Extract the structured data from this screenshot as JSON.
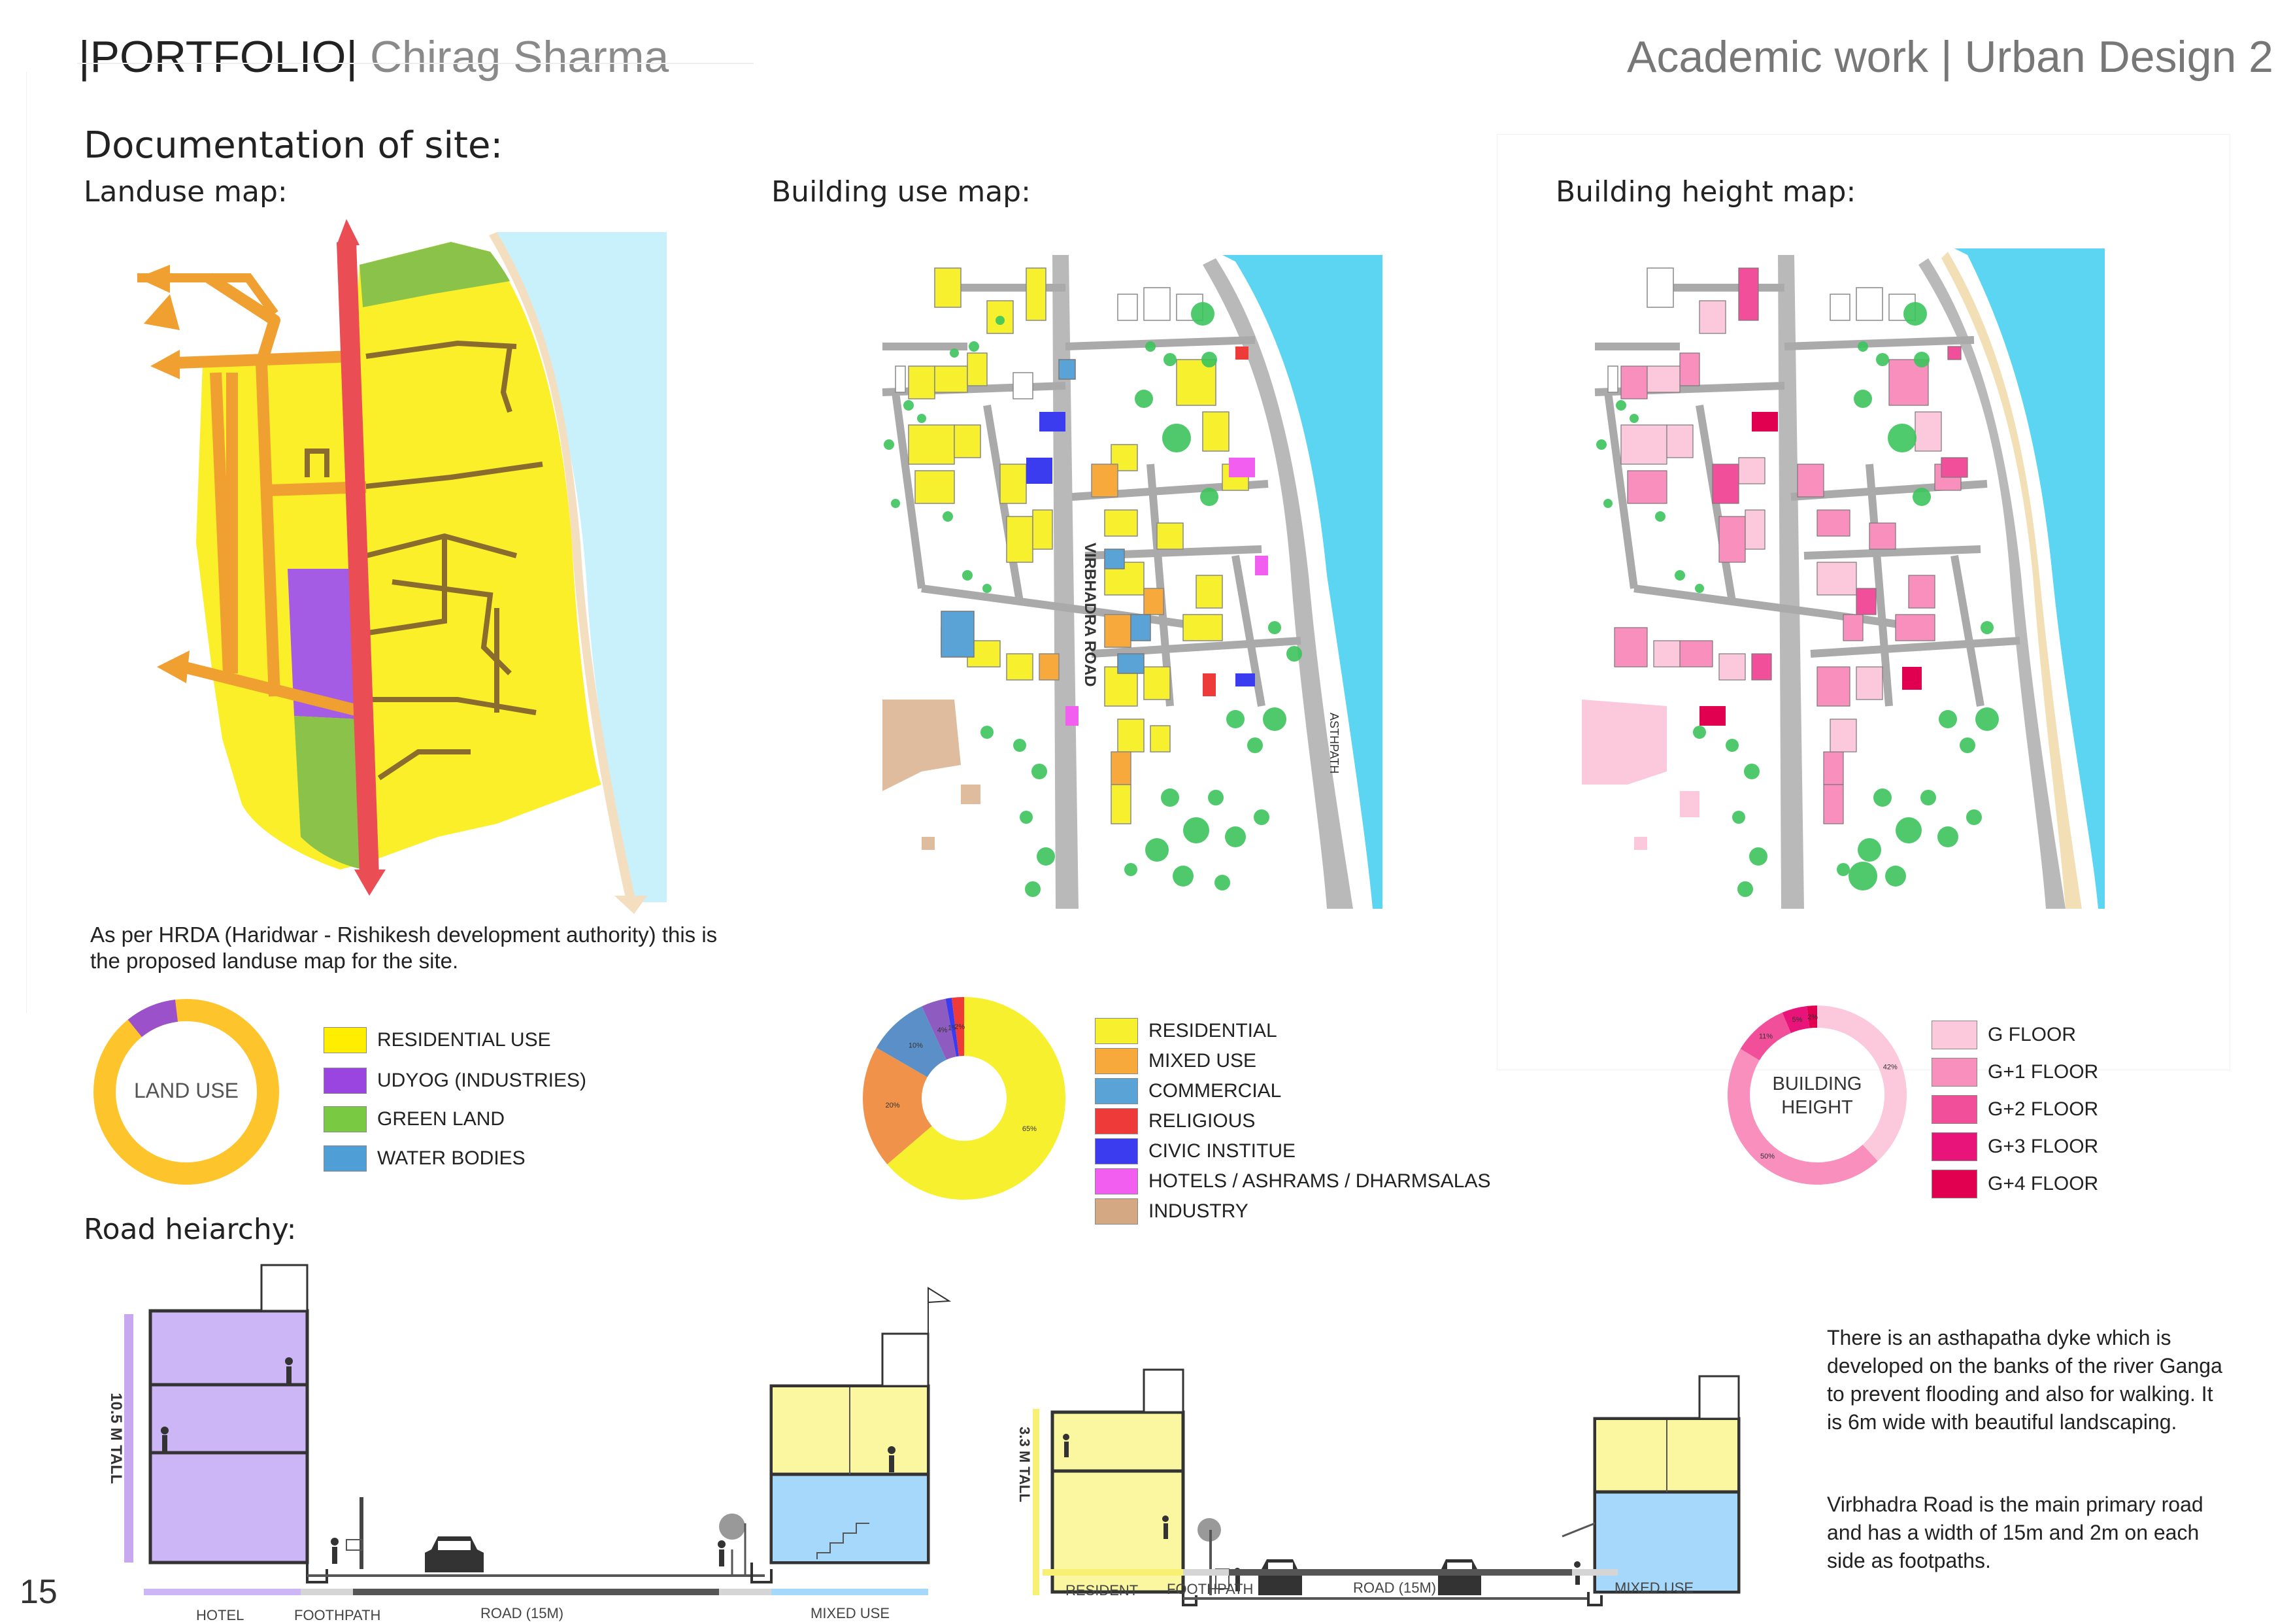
{
  "header": {
    "portfolio": "PORTFOLIO",
    "name": "Chirag Sharma",
    "right": "Academic work | Urban Design 2"
  },
  "page_title": "Documentation of site:",
  "page_number": "15",
  "landuse": {
    "title": "Landuse map:",
    "note": "As per HRDA (Haridwar - Rishikesh development authority) this is the proposed landuse map for the site.",
    "donut_label": "LAND USE",
    "legend": [
      {
        "label": "RESIDENTIAL USE",
        "color": "#ffee00"
      },
      {
        "label": "UDYOG (INDUSTRIES)",
        "color": "#9b45e0"
      },
      {
        "label": "GREEN LAND",
        "color": "#7ac943"
      },
      {
        "label": "WATER BODIES",
        "color": "#4f9fd6"
      }
    ],
    "shares": [
      88,
      9,
      3
    ]
  },
  "building_use": {
    "title": "Building use map:",
    "road_label": "VIRBHADRA ROAD",
    "path_label": "ASTHPATH",
    "legend": [
      {
        "label": "RESIDENTIAL",
        "color": "#f7f02f"
      },
      {
        "label": "MIXED USE",
        "color": "#f7a93b"
      },
      {
        "label": "COMMERCIAL",
        "color": "#5aa3d6"
      },
      {
        "label": "RELIGIOUS",
        "color": "#ef3a3a"
      },
      {
        "label": "CIVIC INSTITUE",
        "color": "#3b3bef"
      },
      {
        "label": "HOTELS / ASHRAMS / DHARMSALAS",
        "color": "#f25ff0"
      },
      {
        "label": "INDUSTRY",
        "color": "#d4a882"
      }
    ],
    "shares": [
      {
        "label": "65%",
        "value": 65,
        "color": "#f7f02f"
      },
      {
        "label": "20%",
        "value": 20,
        "color": "#f0924a"
      },
      {
        "label": "10%",
        "value": 10,
        "color": "#5b8fc7"
      },
      {
        "label": "4%",
        "value": 4,
        "color": "#8e5cc0"
      },
      {
        "label": "1%",
        "value": 1,
        "color": "#3b3bef"
      },
      {
        "label": "2%",
        "value": 2,
        "color": "#ef3a3a"
      }
    ]
  },
  "building_height": {
    "title": "Building height map:",
    "donut_label": "BUILDING HEIGHT",
    "legend": [
      {
        "label": "G FLOOR",
        "color": "#fbc8dc"
      },
      {
        "label": "G+1 FLOOR",
        "color": "#f88fbd"
      },
      {
        "label": "G+2 FLOOR",
        "color": "#f24f9a"
      },
      {
        "label": "G+3 FLOOR",
        "color": "#e9147a"
      },
      {
        "label": "G+4 FLOOR",
        "color": "#e0004f"
      }
    ],
    "shares": [
      {
        "label": "42%",
        "value": 42,
        "color": "#fbc8dc"
      },
      {
        "label": "50%",
        "value": 50,
        "color": "#f88fbd"
      },
      {
        "label": "11%",
        "value": 11,
        "color": "#f24f9a"
      },
      {
        "label": "5%",
        "value": 5,
        "color": "#e9147a"
      },
      {
        "label": "2%",
        "value": 2,
        "color": "#e0004f"
      }
    ]
  },
  "road_hierarchy": {
    "title": "Road heiarchy:",
    "section1": {
      "height_label": "10.5 M TALL",
      "labels": [
        "HOTEL",
        "FOOTHPATH",
        "ROAD (15M)",
        "MIXED USE"
      ]
    },
    "section2": {
      "height_label": "3.3 M TALL",
      "labels": [
        "RESIDENT",
        "FOOTHPATH",
        "ROAD (15M)",
        "MIXED USE"
      ]
    },
    "para1": "There is an asthapatha dyke which is developed on the banks of the river Ganga to prevent flooding and also for walking. It is 6m wide with beautiful landscaping.",
    "para2": "Virbhadra Road is the main primary road and has a width of 15m and 2m on each side as footpaths."
  }
}
